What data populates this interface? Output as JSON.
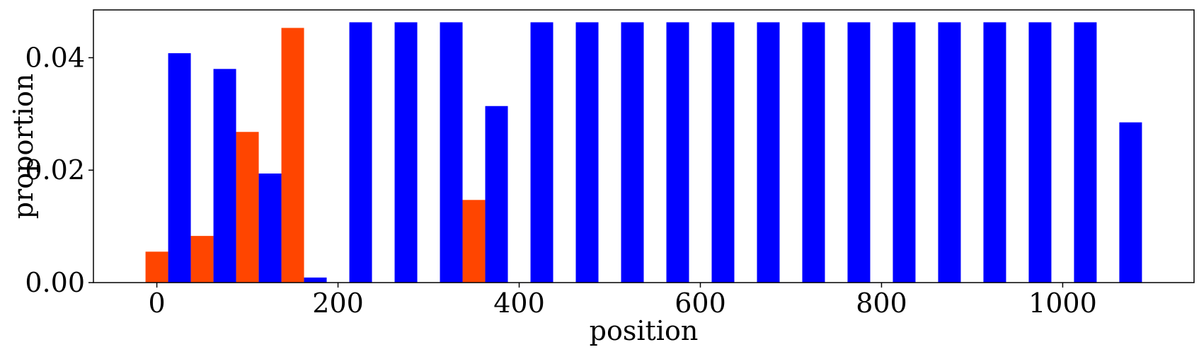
{
  "chart_data": {
    "type": "bar",
    "title": "",
    "xlabel": "position",
    "ylabel": "proportion",
    "xlim": [
      -70,
      1145
    ],
    "ylim": [
      0,
      0.0485
    ],
    "xticks": [
      0,
      200,
      400,
      600,
      800,
      1000
    ],
    "yticks": [
      0.0,
      0.02,
      0.04
    ],
    "xtick_labels": [
      "0",
      "200",
      "400",
      "600",
      "800",
      "1000"
    ],
    "ytick_labels": [
      "0.00",
      "0.02",
      "0.04"
    ],
    "bar_width": 25,
    "grid": false,
    "legend": "none",
    "series": [
      {
        "color": "#ff4500",
        "x": [
          0,
          50,
          100,
          150,
          350
        ],
        "values": [
          0.0055,
          0.0083,
          0.0268,
          0.0453,
          0.0147
        ]
      },
      {
        "color": "#0000ff",
        "x": [
          25,
          75,
          125,
          175,
          225,
          275,
          325,
          375,
          425,
          475,
          525,
          575,
          625,
          675,
          725,
          775,
          825,
          875,
          925,
          975,
          1025,
          1075
        ],
        "values": [
          0.0408,
          0.038,
          0.0194,
          0.0009,
          0.0463,
          0.0463,
          0.0463,
          0.0314,
          0.0463,
          0.0463,
          0.0463,
          0.0463,
          0.0463,
          0.0463,
          0.0463,
          0.0463,
          0.0463,
          0.0463,
          0.0463,
          0.0463,
          0.0463,
          0.0285
        ]
      }
    ]
  }
}
